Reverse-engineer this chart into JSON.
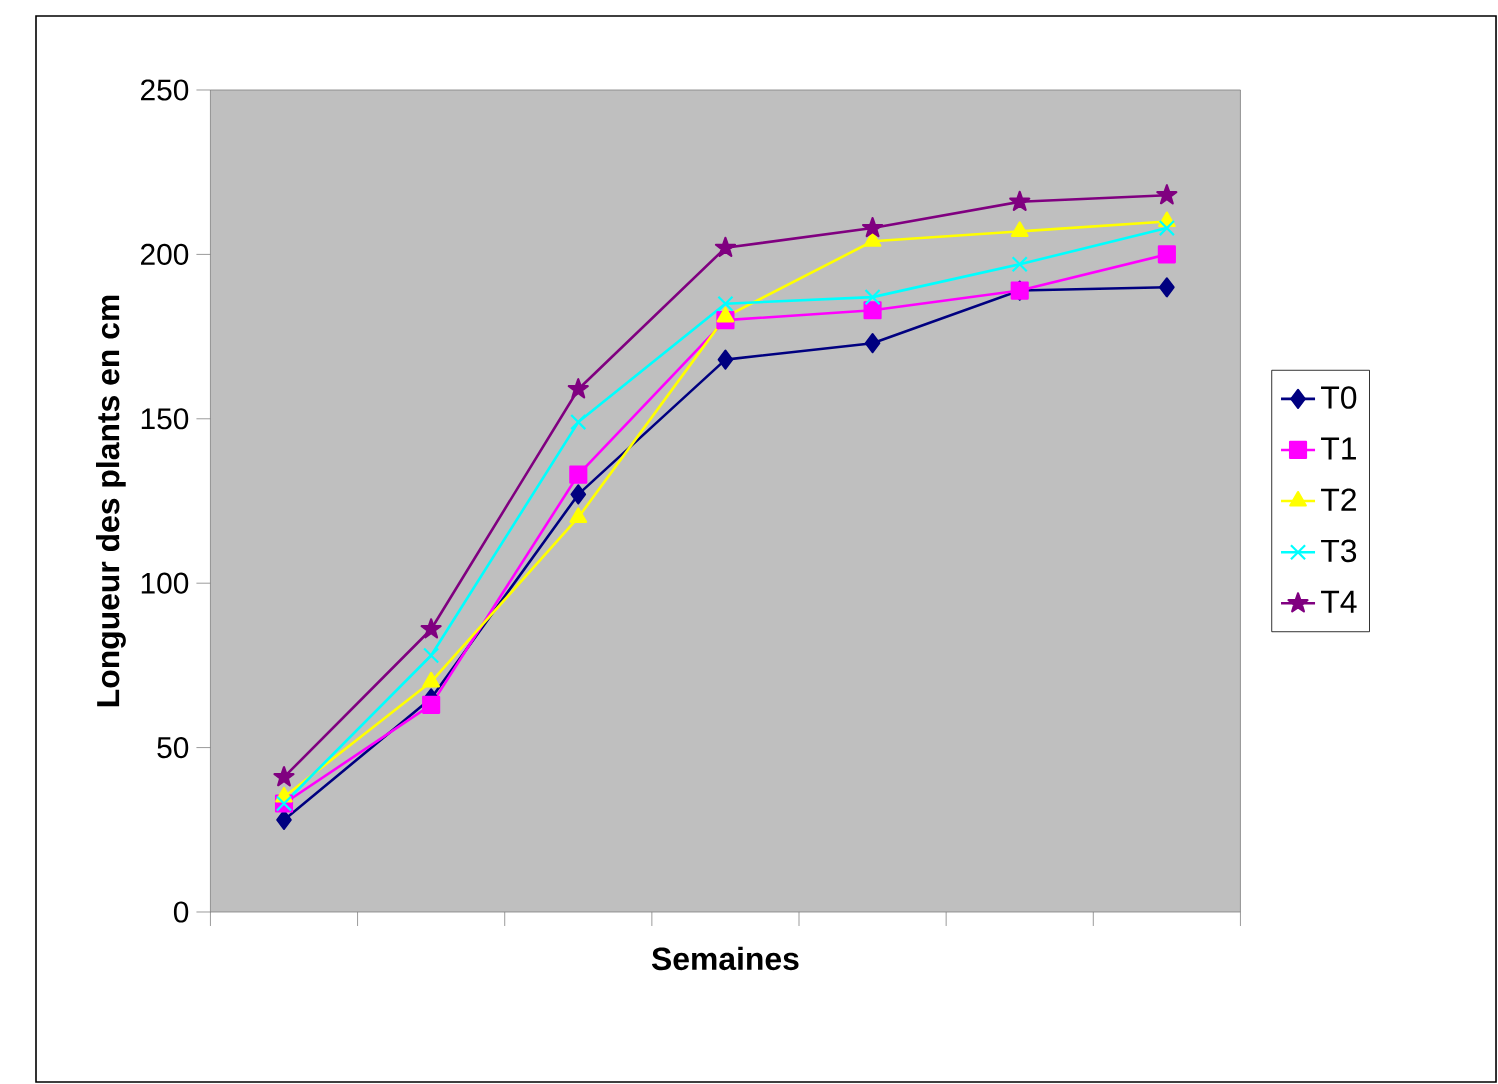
{
  "chart_data": {
    "type": "line",
    "xlabel": "Semaines",
    "ylabel": "Longueur des plants en cm",
    "categories": [
      null,
      null,
      null,
      null,
      null,
      null,
      null
    ],
    "series": [
      {
        "name": "T0",
        "color": "#000080",
        "marker": "diamond",
        "values": [
          28,
          65,
          127,
          168,
          173,
          189,
          190
        ]
      },
      {
        "name": "T1",
        "color": "#ff00ff",
        "marker": "square",
        "values": [
          33,
          63,
          133,
          180,
          183,
          189,
          200
        ]
      },
      {
        "name": "T2",
        "color": "#ffff00",
        "marker": "triangle",
        "values": [
          35,
          70,
          120,
          181,
          204,
          207,
          210
        ]
      },
      {
        "name": "T3",
        "color": "#00ffff",
        "marker": "cross",
        "values": [
          33,
          78,
          149,
          185,
          187,
          197,
          208
        ]
      },
      {
        "name": "T4",
        "color": "#800080",
        "marker": "star",
        "values": [
          41,
          86,
          159,
          202,
          208,
          216,
          218
        ]
      }
    ],
    "ylim": [
      0,
      250
    ],
    "yticks": [
      0,
      50,
      100,
      150,
      200,
      250
    ],
    "tick_labels": "y",
    "grid": false,
    "legend": "right",
    "line_style": "solid"
  }
}
